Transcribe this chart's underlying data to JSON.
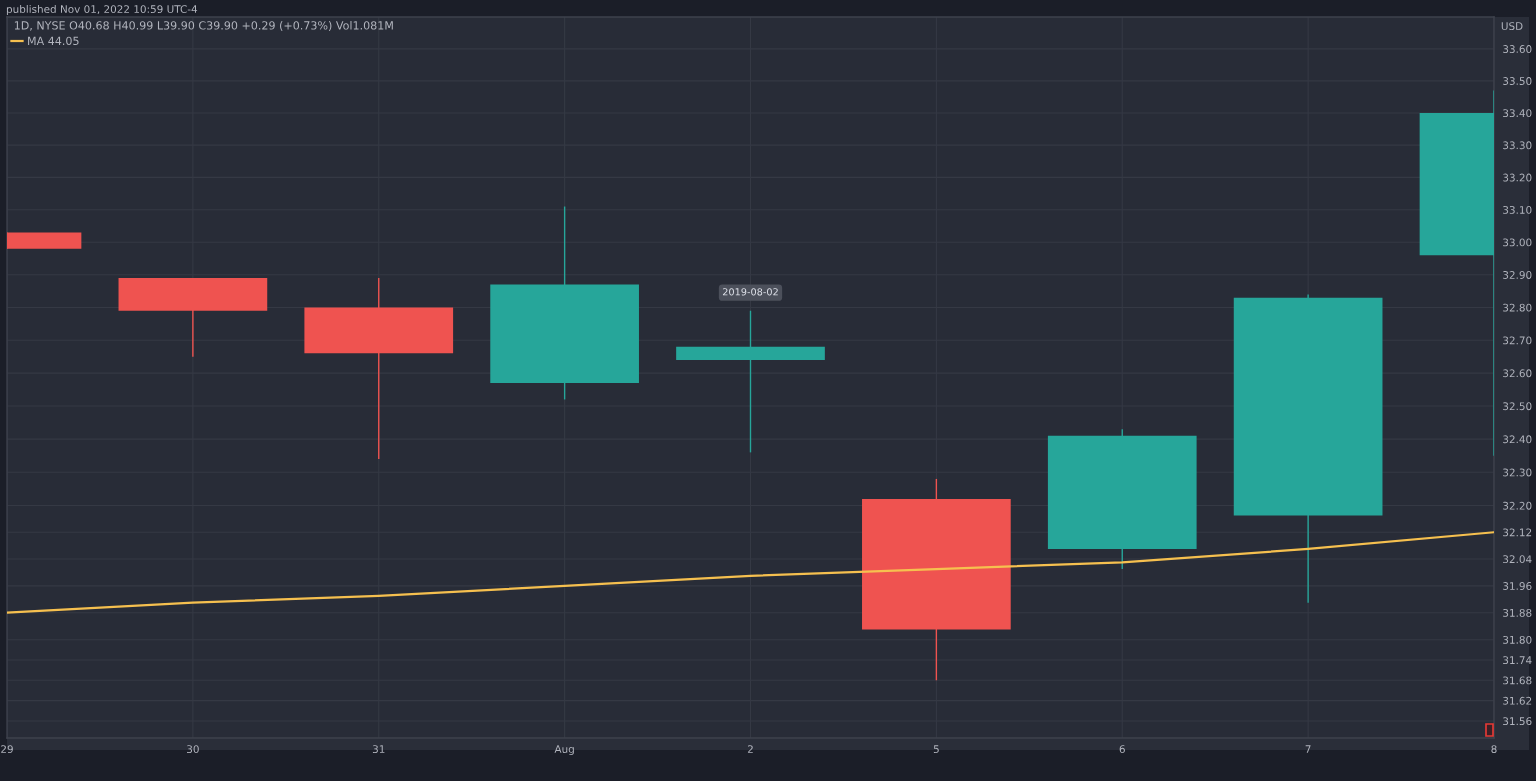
{
  "chart_data": {
    "type": "candlestick",
    "title": "1D, NYSE O40.68 H40.99 L39.90 C39.90 +0.29 (+0.73%) Vol1.081M",
    "ylabel": "USD",
    "categories": [
      "29",
      "30",
      "31",
      "Aug",
      "2",
      "5",
      "6",
      "7",
      "8"
    ],
    "series": [
      {
        "ohlc": [
          [
            33.03,
            33.03,
            32.98,
            32.98
          ],
          [
            32.89,
            32.89,
            32.65,
            32.79
          ],
          [
            32.8,
            32.89,
            32.34,
            32.66
          ],
          [
            32.57,
            33.11,
            32.52,
            32.87
          ],
          [
            32.64,
            32.79,
            32.36,
            32.68
          ],
          [
            32.22,
            32.28,
            31.68,
            31.83
          ],
          [
            32.07,
            32.43,
            32.01,
            32.41
          ],
          [
            32.17,
            32.84,
            31.91,
            32.83
          ],
          [
            32.96,
            33.47,
            32.35,
            33.4
          ]
        ],
        "colors": [
          "#ef5350",
          "#ef5350",
          "#ef5350",
          "#26a69a",
          "#26a69a",
          "#ef5350",
          "#26a69a",
          "#26a69a",
          "#26a69a"
        ]
      },
      {
        "type": "line",
        "name": "MA 44.05",
        "color": "#f6c04f",
        "values": [
          31.88,
          31.91,
          31.93,
          31.96,
          31.99,
          32.01,
          32.03,
          32.07,
          32.12
        ]
      }
    ],
    "ylim": [
      31.51,
      33.7
    ],
    "yticks": [
      {
        "value": 31.56,
        "label": "31.56"
      },
      {
        "value": 31.62,
        "label": "31.62"
      },
      {
        "value": 31.68,
        "label": "31.68"
      },
      {
        "value": 31.74,
        "label": "31.74"
      },
      {
        "value": 31.8,
        "label": "31.80"
      },
      {
        "value": 31.88,
        "label": "31.88"
      },
      {
        "value": 31.96,
        "label": "31.96"
      },
      {
        "value": 32.04,
        "label": "32.04"
      },
      {
        "value": 32.12,
        "label": "32.12"
      },
      {
        "value": 32.2,
        "label": "32.20"
      },
      {
        "value": 32.3,
        "label": "32.30"
      },
      {
        "value": 32.4,
        "label": "32.40"
      },
      {
        "value": 32.5,
        "label": "32.50"
      },
      {
        "value": 32.6,
        "label": "32.60"
      },
      {
        "value": 32.7,
        "label": "32.70"
      },
      {
        "value": 32.8,
        "label": "32.80"
      },
      {
        "value": 32.9,
        "label": "32.90"
      },
      {
        "value": 33.0,
        "label": "33.00"
      },
      {
        "value": 33.1,
        "label": "33.10"
      },
      {
        "value": 33.2,
        "label": "33.20"
      },
      {
        "value": 33.3,
        "label": "33.30"
      },
      {
        "value": 33.4,
        "label": "33.40"
      },
      {
        "value": 33.5,
        "label": "33.50"
      },
      {
        "value": 33.6,
        "label": "33.60"
      }
    ],
    "log": true,
    "grid": true,
    "legend": "top left",
    "annotations": [
      {
        "text": "2019-08-02",
        "x": "2",
        "y": 32.79
      },
      "published Nov 01, 2022 10:59 UTC-4"
    ]
  }
}
